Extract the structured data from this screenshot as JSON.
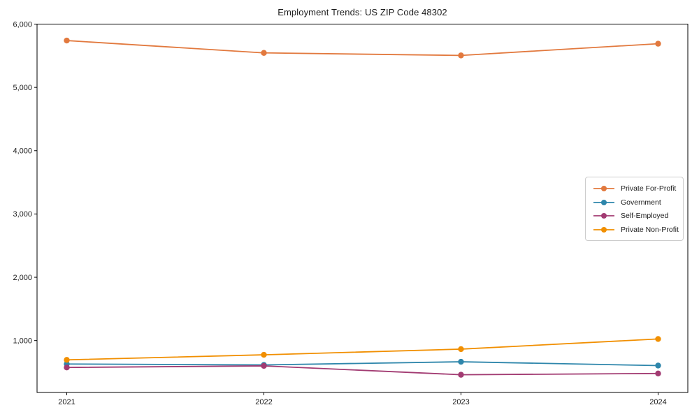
{
  "chart_data": {
    "type": "line",
    "title": "Employment Trends: US ZIP Code 48302",
    "xlabel": "",
    "ylabel": "",
    "categories": [
      "2021",
      "2022",
      "2023",
      "2024"
    ],
    "y_ticks": [
      1000,
      2000,
      3000,
      4000,
      5000,
      6000
    ],
    "y_tick_labels": [
      "1,000",
      "2,000",
      "3,000",
      "4,000",
      "5,000",
      "6,000"
    ],
    "ylim": [
      180,
      6000
    ],
    "grid": false,
    "legend_position": "center-right",
    "marker": "circle",
    "axis_color": "#000000",
    "text_color": "#1a1a1a",
    "series": [
      {
        "name": "Private For-Profit",
        "color": "#E2793E",
        "values": [
          5740,
          5545,
          5505,
          5690
        ]
      },
      {
        "name": "Government",
        "color": "#2E86AB",
        "values": [
          630,
          615,
          665,
          605
        ]
      },
      {
        "name": "Self-Employed",
        "color": "#A23B72",
        "values": [
          575,
          600,
          460,
          480
        ]
      },
      {
        "name": "Private Non-Profit",
        "color": "#F18F01",
        "values": [
          695,
          775,
          865,
          1025
        ]
      }
    ]
  }
}
